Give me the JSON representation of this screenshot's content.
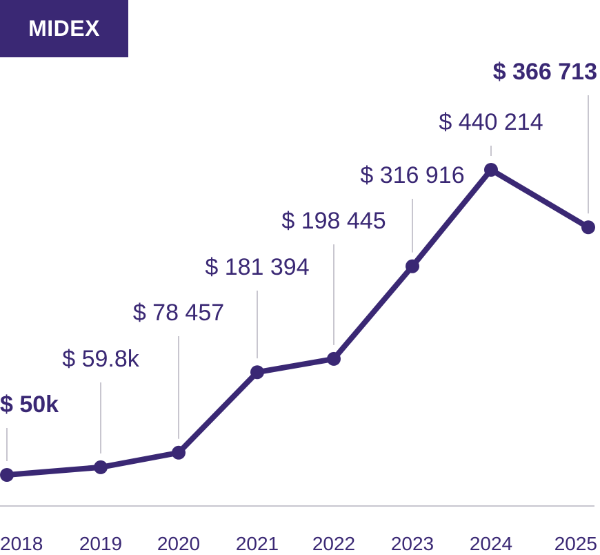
{
  "badge": {
    "label": "MIDEX"
  },
  "colors": {
    "line": "#3a2874",
    "leader": "#c8c6cf",
    "axis": "#c8c6cf",
    "label": "#3a2874",
    "tick": "#3a2874"
  },
  "chart_data": {
    "type": "line",
    "categories": [
      "2018",
      "2019",
      "2020",
      "2021",
      "2022",
      "2023",
      "2024",
      "2025"
    ],
    "values": [
      50000,
      59800,
      78457,
      181394,
      198445,
      316916,
      440214,
      366713
    ],
    "data_labels": [
      "$ 50k",
      "$ 59.8k",
      "$ 78 457",
      "$ 181 394",
      "$ 198 445",
      "$ 316 916",
      "$ 440 214",
      "$ 366 713"
    ],
    "highlighted": [
      true,
      false,
      false,
      false,
      false,
      false,
      false,
      true
    ],
    "title": "",
    "xlabel": "",
    "ylabel": "",
    "grid": false
  }
}
